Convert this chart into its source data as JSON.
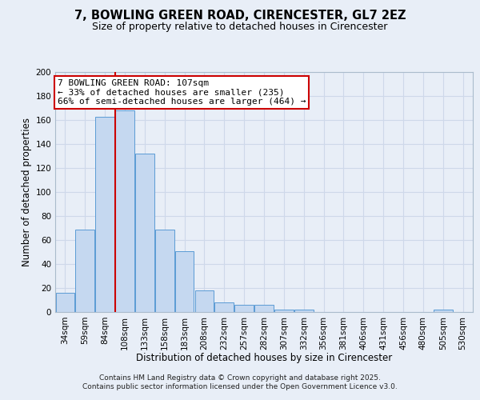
{
  "title_line1": "7, BOWLING GREEN ROAD, CIRENCESTER, GL7 2EZ",
  "title_line2": "Size of property relative to detached houses in Cirencester",
  "xlabel": "Distribution of detached houses by size in Cirencester",
  "ylabel": "Number of detached properties",
  "categories": [
    "34sqm",
    "59sqm",
    "84sqm",
    "108sqm",
    "133sqm",
    "158sqm",
    "183sqm",
    "208sqm",
    "232sqm",
    "257sqm",
    "282sqm",
    "307sqm",
    "332sqm",
    "356sqm",
    "381sqm",
    "406sqm",
    "431sqm",
    "456sqm",
    "480sqm",
    "505sqm",
    "530sqm"
  ],
  "values": [
    16,
    69,
    163,
    168,
    132,
    69,
    51,
    18,
    8,
    6,
    6,
    2,
    2,
    0,
    0,
    0,
    0,
    0,
    0,
    2,
    0
  ],
  "bar_color": "#c5d8f0",
  "bar_edge_color": "#5b9bd5",
  "grid_color": "#ced8ea",
  "background_color": "#e8eef7",
  "vline_x_index": 3,
  "vline_color": "#cc0000",
  "annotation_text": "7 BOWLING GREEN ROAD: 107sqm\n← 33% of detached houses are smaller (235)\n66% of semi-detached houses are larger (464) →",
  "annotation_box_color": "#ffffff",
  "annotation_box_edge_color": "#cc0000",
  "ylim": [
    0,
    200
  ],
  "yticks": [
    0,
    20,
    40,
    60,
    80,
    100,
    120,
    140,
    160,
    180,
    200
  ],
  "footer_line1": "Contains HM Land Registry data © Crown copyright and database right 2025.",
  "footer_line2": "Contains public sector information licensed under the Open Government Licence v3.0.",
  "title_fontsize": 10.5,
  "subtitle_fontsize": 9,
  "axis_label_fontsize": 8.5,
  "tick_fontsize": 7.5,
  "annotation_fontsize": 8,
  "footer_fontsize": 6.5
}
